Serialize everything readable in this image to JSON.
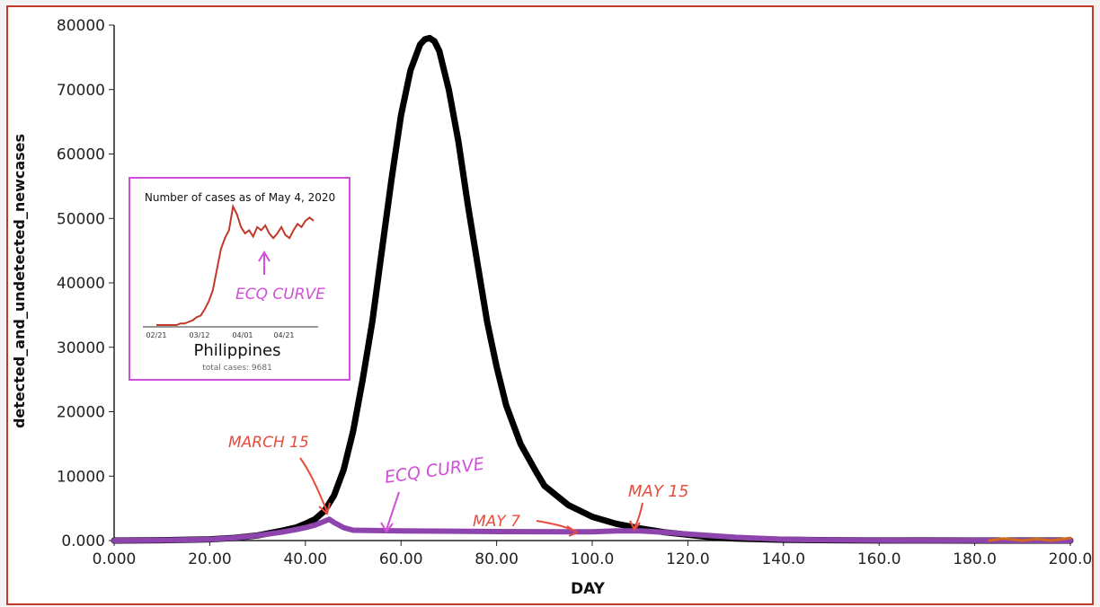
{
  "chart_data": {
    "type": "line",
    "xlabel": "DAY",
    "ylabel": "detected_and_undetected_newcases",
    "xlim": [
      0,
      200
    ],
    "ylim": [
      0,
      80000
    ],
    "x_ticks": [
      "0.000",
      "20.00",
      "40.00",
      "60.00",
      "80.00",
      "100.0",
      "120.0",
      "140.0",
      "160.0",
      "180.0",
      "200.0"
    ],
    "y_ticks": [
      "0.000",
      "10000",
      "20000",
      "30000",
      "40000",
      "50000",
      "60000",
      "70000",
      "80000"
    ],
    "grid": false,
    "series": [
      {
        "color": "#000000",
        "x": [
          0,
          10,
          20,
          25,
          30,
          35,
          38,
          40,
          42,
          44,
          46,
          48,
          50,
          52,
          54,
          56,
          58,
          60,
          62,
          64,
          65,
          66,
          67,
          68,
          70,
          72,
          74,
          76,
          78,
          80,
          82,
          85,
          88,
          90,
          95,
          100,
          105,
          110,
          115,
          120,
          125,
          130,
          140,
          150,
          160,
          170,
          180,
          190,
          200
        ],
        "y": [
          0,
          50,
          200,
          400,
          800,
          1500,
          2000,
          2600,
          3300,
          4600,
          7000,
          11000,
          17000,
          25000,
          34000,
          45000,
          56000,
          66000,
          73000,
          77000,
          77800,
          78000,
          77500,
          76000,
          70000,
          62000,
          52000,
          43000,
          34000,
          27000,
          21000,
          15000,
          11000,
          8500,
          5500,
          3700,
          2600,
          1900,
          1300,
          900,
          500,
          300,
          120,
          50,
          20,
          10,
          5,
          2,
          0
        ]
      },
      {
        "color": "#8e44ad",
        "x": [
          0,
          10,
          20,
          25,
          30,
          35,
          38,
          40,
          42,
          44,
          45,
          46,
          48,
          50,
          60,
          80,
          100,
          105,
          110,
          115,
          120,
          130,
          140,
          150,
          160,
          170,
          180,
          190,
          200
        ],
        "y": [
          0,
          50,
          200,
          400,
          800,
          1300,
          1700,
          2000,
          2400,
          3000,
          3300,
          2800,
          2000,
          1600,
          1500,
          1400,
          1350,
          1500,
          1500,
          1300,
          1000,
          500,
          200,
          80,
          40,
          20,
          10,
          5,
          0
        ]
      },
      {
        "color": "#d2691e",
        "x": [
          183,
          186,
          190,
          193,
          196,
          200
        ],
        "y": [
          0,
          300,
          0,
          250,
          0,
          400
        ]
      }
    ],
    "annotations": [
      {
        "text": "MARCH 15",
        "color": "#e74c3c"
      },
      {
        "text": "ECQ CURVE",
        "color": "#d04fd8"
      },
      {
        "text": "MAY 7",
        "color": "#e74c3c"
      },
      {
        "text": "MAY 15",
        "color": "#e74c3c"
      }
    ],
    "inset": {
      "title": "Number of cases as of May 4, 2020",
      "country": "Philippines",
      "total": "total cases: 9681",
      "x_ticks": [
        "02/21",
        "03/12",
        "04/01",
        "04/21"
      ],
      "annotation": "ECQ CURVE",
      "series_color": "#c0392b",
      "values": [
        0,
        0,
        0,
        0,
        0,
        0,
        1,
        1,
        2,
        3,
        5,
        6,
        10,
        15,
        22,
        35,
        48,
        55,
        60,
        75,
        70,
        62,
        58,
        60,
        56,
        62,
        60,
        63,
        58,
        55,
        58,
        62,
        57,
        55,
        60,
        64,
        62,
        66,
        68,
        66
      ]
    }
  }
}
